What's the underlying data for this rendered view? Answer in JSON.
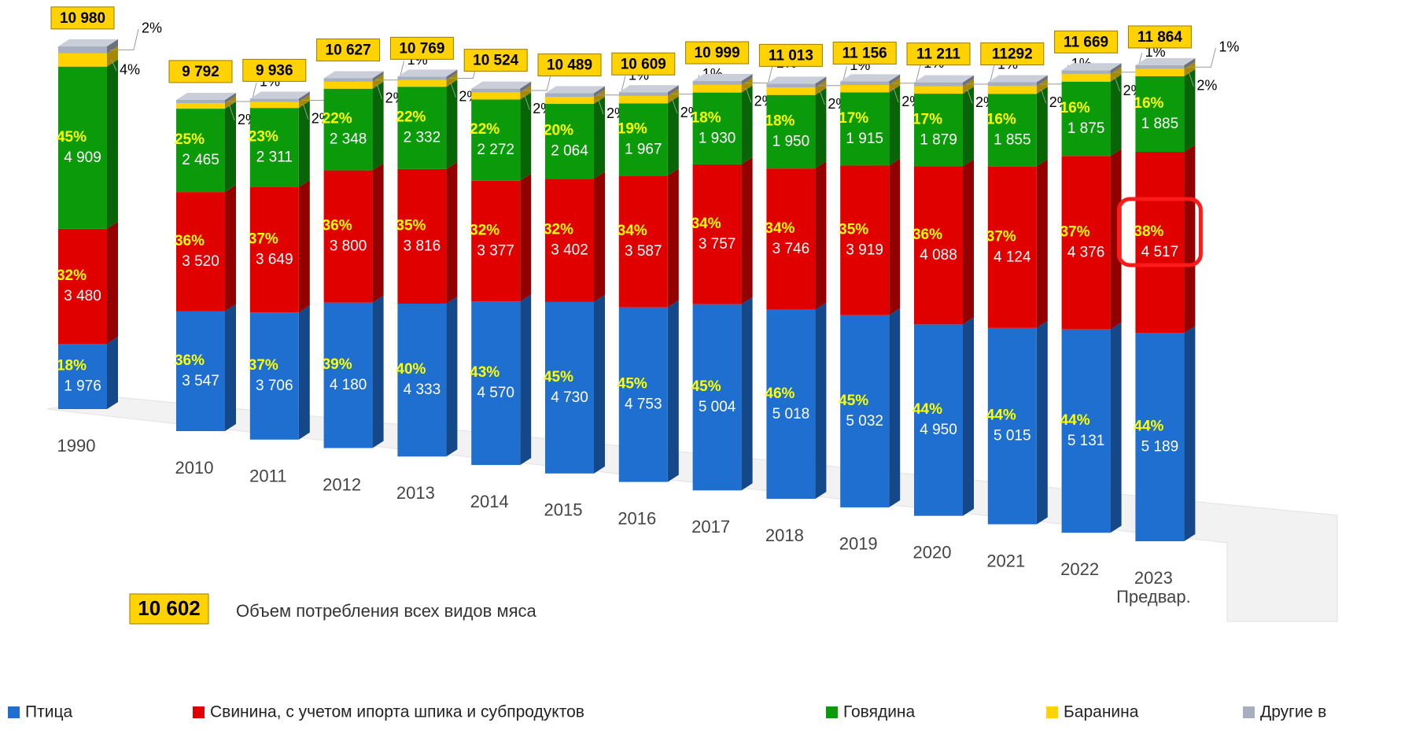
{
  "chart_data": {
    "type": "bar",
    "stacked": true,
    "categories": [
      "1990",
      "2010",
      "2011",
      "2012",
      "2013",
      "2014",
      "2015",
      "2016",
      "2017",
      "2018",
      "2019",
      "2020",
      "2021",
      "2022",
      "2023"
    ],
    "category_note": "Предвар.",
    "series": [
      {
        "name": "Птица",
        "color": "#1f6fd1",
        "values": [
          1976,
          3547,
          3706,
          4180,
          4333,
          4570,
          4730,
          4753,
          5004,
          5018,
          5032,
          4950,
          5015,
          5131,
          5189
        ],
        "value_labels": [
          "1 976",
          "3 547",
          "3 706",
          "4 180",
          "4 333",
          "4 570",
          "4 730",
          "4 753",
          "5 004",
          "5 018",
          "5 032",
          "4 950",
          "5 015",
          "5 131",
          "5 189"
        ],
        "share_labels": [
          "18%",
          "36%",
          "37%",
          "39%",
          "40%",
          "43%",
          "45%",
          "45%",
          "45%",
          "46%",
          "45%",
          "44%",
          "44%",
          "44%",
          "44%"
        ]
      },
      {
        "name": "Свинина, с учетом ипорта шпика и субпродуктов",
        "color": "#e00000",
        "values": [
          3480,
          3520,
          3649,
          3800,
          3816,
          3377,
          3402,
          3587,
          3757,
          3746,
          3919,
          4088,
          4124,
          4376,
          4517
        ],
        "value_labels": [
          "3 480",
          "3 520",
          "3 649",
          "3 800",
          "3 816",
          "3 377",
          "3 402",
          "3 587",
          "3 757",
          "3 746",
          "3 919",
          "4 088",
          "4 124",
          "4 376",
          "4 517"
        ],
        "share_labels": [
          "32%",
          "36%",
          "37%",
          "36%",
          "35%",
          "32%",
          "32%",
          "34%",
          "34%",
          "34%",
          "35%",
          "36%",
          "37%",
          "37%",
          "38%"
        ]
      },
      {
        "name": "Говядина",
        "color": "#0a9a0a",
        "values": [
          4909,
          2465,
          2311,
          2348,
          2332,
          2272,
          2064,
          1967,
          1930,
          1950,
          1915,
          1879,
          1855,
          1875,
          1885
        ],
        "value_labels": [
          "4 909",
          "2 465",
          "2 311",
          "2 348",
          "2 332",
          "2 272",
          "2 064",
          "1 967",
          "1 930",
          "1 950",
          "1 915",
          "1 879",
          "1 855",
          "1 875",
          "1 885"
        ],
        "share_labels": [
          "45%",
          "25%",
          "23%",
          "22%",
          "22%",
          "22%",
          "20%",
          "19%",
          "18%",
          "18%",
          "17%",
          "17%",
          "16%",
          "16%",
          "16%"
        ]
      },
      {
        "name": "Баранина",
        "color": "#ffd200",
        "values": [
          400,
          165,
          175,
          200,
          190,
          200,
          195,
          200,
          205,
          200,
          195,
          195,
          200,
          190,
          180
        ],
        "share_labels": [
          "4%",
          "2%",
          "2%",
          "2%",
          "2%",
          "2%",
          "2%",
          "2%",
          "2%",
          "2%",
          "2%",
          "2%",
          "2%",
          "2%",
          "2%"
        ]
      },
      {
        "name": "Другие в",
        "color": "#a6aebf",
        "values": [
          215,
          95,
          95,
          99,
          98,
          105,
          98,
          102,
          103,
          99,
          95,
          99,
          98,
          97,
          93
        ],
        "share_labels": [
          "2%",
          "1%",
          "1%",
          "1%",
          "1%",
          "1%",
          "1%",
          "1%",
          "1%",
          "1%",
          "1%",
          "1%",
          "1%",
          "1%",
          "1%"
        ]
      }
    ],
    "totals": [
      10980,
      9792,
      9936,
      10627,
      10769,
      10524,
      10489,
      10609,
      10999,
      11013,
      11156,
      11211,
      11292,
      11669,
      11864
    ],
    "total_labels": [
      "10 980",
      "9 792",
      "9 936",
      "10 627",
      "10 769",
      "10 524",
      "10 489",
      "10 609",
      "10 999",
      "11 013",
      "11 156",
      "11 211",
      "11292",
      "11 669",
      "11 864"
    ],
    "annotation": {
      "value": 10602,
      "value_label": "10 602",
      "text": "Объем потребления всех видов мяса"
    },
    "highlight": 14
  }
}
